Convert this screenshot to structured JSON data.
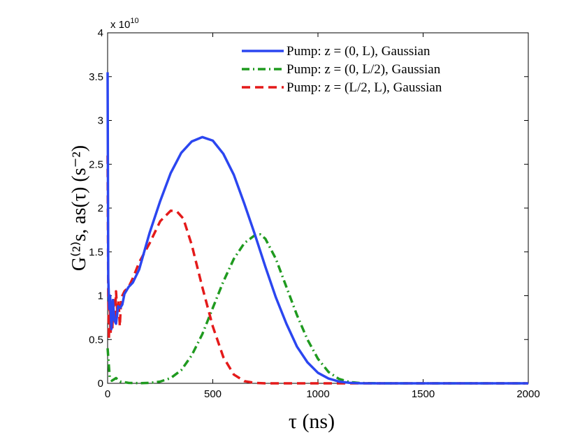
{
  "chart_data": {
    "type": "line",
    "title": "",
    "xlabel": "τ (ns)",
    "ylabel": "G⁽²⁾s, as(τ)  (s⁻²)",
    "xlim": [
      0,
      2000
    ],
    "ylim": [
      0,
      40000000000.0
    ],
    "x_ticks": [
      0,
      500,
      1000,
      1500,
      2000
    ],
    "x_tick_labels": [
      "0",
      "500",
      "1000",
      "1500",
      "2000"
    ],
    "y_ticks": [
      0,
      0.5,
      1,
      1.5,
      2,
      2.5,
      3,
      3.5,
      4
    ],
    "y_tick_labels": [
      "0",
      "0.5",
      "1",
      "1.5",
      "2",
      "2.5",
      "3",
      "3.5",
      "4"
    ],
    "y_multiplier": "x 10",
    "y_multiplier_exponent": "10",
    "grid": false,
    "legend_position": "top-right",
    "series": [
      {
        "name": "Pump: z = (0, L), Gaussian",
        "color": "#2b46f0",
        "style": "solid",
        "points": [
          [
            0,
            3.55
          ],
          [
            3,
            1.2
          ],
          [
            8,
            0.85
          ],
          [
            12,
            1.0
          ],
          [
            18,
            0.62
          ],
          [
            25,
            0.95
          ],
          [
            32,
            0.72
          ],
          [
            40,
            0.68
          ],
          [
            50,
            0.88
          ],
          [
            60,
            0.86
          ],
          [
            70,
            0.9
          ],
          [
            80,
            1.02
          ],
          [
            100,
            1.1
          ],
          [
            120,
            1.15
          ],
          [
            150,
            1.3
          ],
          [
            200,
            1.72
          ],
          [
            250,
            2.08
          ],
          [
            300,
            2.4
          ],
          [
            350,
            2.63
          ],
          [
            400,
            2.76
          ],
          [
            450,
            2.81
          ],
          [
            500,
            2.77
          ],
          [
            550,
            2.62
          ],
          [
            600,
            2.38
          ],
          [
            650,
            2.05
          ],
          [
            700,
            1.7
          ],
          [
            750,
            1.33
          ],
          [
            800,
            0.98
          ],
          [
            850,
            0.68
          ],
          [
            900,
            0.42
          ],
          [
            950,
            0.24
          ],
          [
            1000,
            0.12
          ],
          [
            1050,
            0.055
          ],
          [
            1100,
            0.02
          ],
          [
            1150,
            0.006
          ],
          [
            1200,
            0.001
          ],
          [
            1300,
            0
          ],
          [
            1500,
            0
          ],
          [
            2000,
            0
          ]
        ]
      },
      {
        "name": "Pump: z = (0, L/2), Gaussian",
        "color": "#1f9a1f",
        "style": "dash-dot",
        "points": [
          [
            0,
            0.4
          ],
          [
            10,
            0.07
          ],
          [
            20,
            0.03
          ],
          [
            40,
            0.06
          ],
          [
            60,
            0.02
          ],
          [
            100,
            0.005
          ],
          [
            150,
            0.002
          ],
          [
            200,
            0.005
          ],
          [
            250,
            0.02
          ],
          [
            300,
            0.06
          ],
          [
            350,
            0.15
          ],
          [
            400,
            0.32
          ],
          [
            450,
            0.56
          ],
          [
            500,
            0.86
          ],
          [
            550,
            1.16
          ],
          [
            600,
            1.42
          ],
          [
            650,
            1.6
          ],
          [
            700,
            1.69
          ],
          [
            725,
            1.7
          ],
          [
            750,
            1.65
          ],
          [
            800,
            1.42
          ],
          [
            850,
            1.1
          ],
          [
            900,
            0.78
          ],
          [
            950,
            0.5
          ],
          [
            1000,
            0.28
          ],
          [
            1050,
            0.13
          ],
          [
            1100,
            0.05
          ],
          [
            1150,
            0.015
          ],
          [
            1200,
            0.004
          ],
          [
            1300,
            0
          ],
          [
            1500,
            0
          ],
          [
            2000,
            0
          ]
        ]
      },
      {
        "name": "Pump: z = (L/2, L), Gaussian",
        "color": "#e41a1a",
        "style": "dashed",
        "points": [
          [
            0,
            2.6
          ],
          [
            3,
            1.0
          ],
          [
            6,
            0.5
          ],
          [
            10,
            0.9
          ],
          [
            14,
            0.55
          ],
          [
            18,
            0.8
          ],
          [
            22,
            0.6
          ],
          [
            28,
            0.95
          ],
          [
            34,
            0.7
          ],
          [
            40,
            1.05
          ],
          [
            46,
            0.8
          ],
          [
            52,
            0.95
          ],
          [
            58,
            0.65
          ],
          [
            64,
            0.95
          ],
          [
            70,
            1.0
          ],
          [
            80,
            1.05
          ],
          [
            100,
            1.1
          ],
          [
            120,
            1.2
          ],
          [
            150,
            1.38
          ],
          [
            200,
            1.6
          ],
          [
            250,
            1.85
          ],
          [
            300,
            1.97
          ],
          [
            330,
            1.96
          ],
          [
            360,
            1.88
          ],
          [
            400,
            1.58
          ],
          [
            450,
            1.1
          ],
          [
            500,
            0.65
          ],
          [
            550,
            0.3
          ],
          [
            600,
            0.1
          ],
          [
            650,
            0.025
          ],
          [
            700,
            0.005
          ],
          [
            750,
            0
          ],
          [
            1000,
            0
          ],
          [
            1500,
            0
          ],
          [
            2000,
            0
          ]
        ]
      }
    ]
  }
}
